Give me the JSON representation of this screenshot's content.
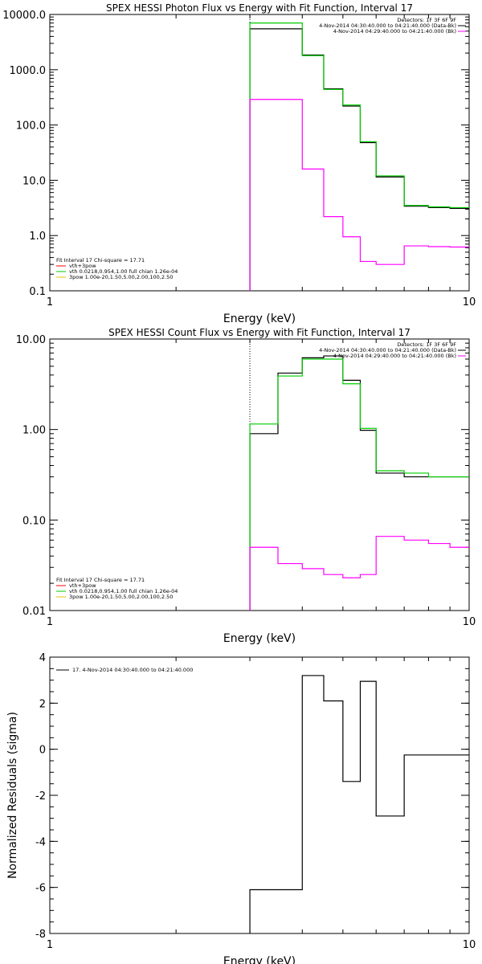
{
  "chart_data": [
    {
      "type": "line",
      "title": "SPEX HESSI Photon Flux vs Energy with Fit Function, Interval 17",
      "xlabel": "Energy (keV)",
      "ylabel": "",
      "xscale": "log",
      "yscale": "log",
      "xlim": [
        1,
        10
      ],
      "ylim": [
        0.1,
        10000
      ],
      "x_ticks": [
        {
          "v": 1,
          "label": "1"
        },
        {
          "v": 10,
          "label": "10"
        }
      ],
      "y_ticks": [
        {
          "v": 0.1,
          "label": "0.1"
        },
        {
          "v": 1,
          "label": "1.0"
        },
        {
          "v": 10,
          "label": "10.0"
        },
        {
          "v": 100,
          "label": "100.0"
        },
        {
          "v": 1000,
          "label": "1000.0"
        },
        {
          "v": 10000,
          "label": "10000.0"
        }
      ],
      "vline_x": 3,
      "bin_edges": [
        3,
        3.5,
        4,
        4.5,
        5,
        5.5,
        6,
        7,
        8,
        9,
        10
      ],
      "series": [
        {
          "color": "#000000",
          "values": [
            5500,
            5500,
            1850,
            450,
            220,
            48,
            11.5,
            3.4,
            3.2,
            3.1
          ]
        },
        {
          "color": "#00cc00",
          "values": [
            7000,
            7000,
            1800,
            440,
            230,
            50,
            12,
            3.5,
            3.3,
            3.2
          ]
        },
        {
          "color": "#ff00ff",
          "values": [
            290,
            290,
            16,
            2.2,
            0.95,
            0.34,
            0.3,
            0.65,
            0.63,
            0.62
          ]
        }
      ],
      "legend_bottom": {
        "header": "Fit Interval 17   Chi-square = 17.71",
        "items": [
          {
            "color": "#ff0000",
            "label": "vth+3pow"
          },
          {
            "color": "#00cc00",
            "label": "vth 0.0218,0.954,1.00  full chian 1.26e-04"
          },
          {
            "color": "#e8c000",
            "label": "3pow 1.00e-20,1.50,5.00,2.00,100,2.50"
          }
        ]
      },
      "legend_top": {
        "header": "Detectors: 1F 3F 6F 9F",
        "items": [
          {
            "color": "#000000",
            "label": "4-Nov-2014 04:30:40.000 to 04:21:40.000 (Data-Bk)"
          },
          {
            "color": "#ff00ff",
            "label": "4-Nov-2014 04:29:40.000 to 04:21:40.000 (Bk)"
          }
        ]
      }
    },
    {
      "type": "line",
      "title": "SPEX HESSI Count Flux vs Energy with Fit Function, Interval 17",
      "xlabel": "Energy (keV)",
      "ylabel": "",
      "xscale": "log",
      "yscale": "log",
      "xlim": [
        1,
        10
      ],
      "ylim": [
        0.01,
        10
      ],
      "x_ticks": [
        {
          "v": 1,
          "label": "1"
        },
        {
          "v": 10,
          "label": "10"
        }
      ],
      "y_ticks": [
        {
          "v": 0.01,
          "label": "0.01"
        },
        {
          "v": 0.1,
          "label": "0.10"
        },
        {
          "v": 1,
          "label": "1.00"
        },
        {
          "v": 10,
          "label": "10.00"
        }
      ],
      "vline_x": 3,
      "bin_edges": [
        3,
        3.5,
        4,
        4.5,
        5,
        5.5,
        6,
        7,
        8,
        9,
        10
      ],
      "series": [
        {
          "color": "#000000",
          "values": [
            0.9,
            4.2,
            6.2,
            6.5,
            3.5,
            0.98,
            0.33,
            0.3,
            0.3,
            0.3
          ]
        },
        {
          "color": "#00cc00",
          "values": [
            1.15,
            3.9,
            6.0,
            6.0,
            3.2,
            1.03,
            0.35,
            0.33,
            0.3,
            0.3
          ]
        },
        {
          "color": "#ff00ff",
          "values": [
            0.05,
            0.033,
            0.029,
            0.025,
            0.023,
            0.025,
            0.066,
            0.06,
            0.055,
            0.05
          ]
        }
      ],
      "legend_bottom": {
        "header": "Fit Interval 17   Chi-square = 17.71",
        "items": [
          {
            "color": "#ff0000",
            "label": "vth+3pow"
          },
          {
            "color": "#00cc00",
            "label": "vth 0.0218,0.954,1.00  full chian 1.26e-04"
          },
          {
            "color": "#e8c000",
            "label": "3pow 1.00e-20,1.50,5.00,2.00,100,2.50"
          }
        ]
      },
      "legend_top": {
        "header": "Detectors: 1F 3F 6F 9F",
        "items": [
          {
            "color": "#000000",
            "label": "4-Nov-2014 04:30:40.000 to 04:21:40.000 (Data-Bk)"
          },
          {
            "color": "#ff00ff",
            "label": "4-Nov-2014 04:29:40.000 to 04:21:40.000 (Bk)"
          }
        ]
      }
    },
    {
      "type": "line",
      "title": "",
      "xlabel": "Energy (keV)",
      "ylabel": "Normalized Residuals (sigma)",
      "xscale": "log",
      "yscale": "linear",
      "xlim": [
        1,
        10
      ],
      "ylim": [
        -8,
        4
      ],
      "x_ticks": [
        {
          "v": 1,
          "label": "1"
        },
        {
          "v": 10,
          "label": "10"
        }
      ],
      "y_ticks": [
        {
          "v": -8,
          "label": "-8"
        },
        {
          "v": -6,
          "label": "-6"
        },
        {
          "v": -4,
          "label": "-4"
        },
        {
          "v": -2,
          "label": "-2"
        },
        {
          "v": 0,
          "label": "0"
        },
        {
          "v": 2,
          "label": "2"
        },
        {
          "v": 4,
          "label": "4"
        }
      ],
      "bin_edges": [
        3,
        3.5,
        4,
        4.5,
        5,
        5.5,
        6,
        7,
        8,
        9,
        10
      ],
      "series": [
        {
          "color": "#000000",
          "values": [
            -6.1,
            -6.1,
            3.2,
            2.1,
            -1.4,
            2.95,
            -2.9,
            -0.25,
            -0.25,
            -0.25
          ]
        }
      ],
      "legend_top": {
        "header": "",
        "items": [
          {
            "color": "#000000",
            "label": "17.  4-Nov-2014 04:30:40.000 to 04:21:40.000"
          }
        ]
      }
    }
  ]
}
